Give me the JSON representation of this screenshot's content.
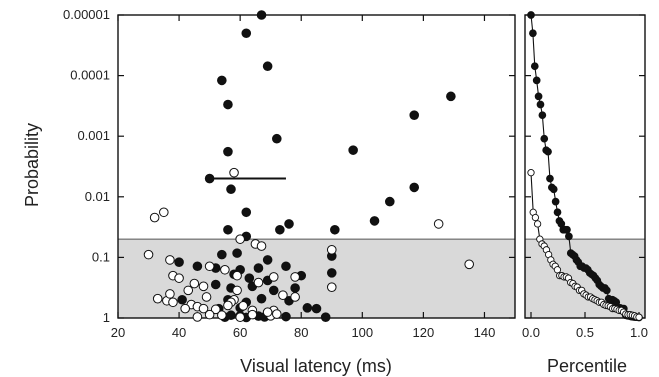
{
  "chart_data": [
    {
      "type": "scatter",
      "title": "",
      "xlabel": "Visual latency (ms)",
      "ylabel": "Probability",
      "xlim": [
        20,
        150
      ],
      "ylim": [
        1,
        1e-05
      ],
      "yscale": "log-reversed",
      "xticks": [
        "20",
        "40",
        "60",
        "80",
        "100",
        "120",
        "140"
      ],
      "yticks": [
        "0.00001",
        "0.0001",
        "0.001",
        "0.01",
        "0.1",
        "1"
      ],
      "shaded_region": {
        "p_from": 0.05,
        "p_to": 1,
        "color": "#d9d9d9"
      },
      "horizontal_bar": {
        "x": [
          50,
          75
        ],
        "p": 0.005
      },
      "series": [
        {
          "marker": "filled",
          "color": "#111111",
          "points": [
            [
              67,
              1e-05
            ],
            [
              62,
              2e-05
            ],
            [
              69,
              7e-05
            ],
            [
              54,
              0.00012
            ],
            [
              56,
              0.0003
            ],
            [
              129,
              0.00022
            ],
            [
              117,
              0.00045
            ],
            [
              72,
              0.0011
            ],
            [
              56,
              0.0018
            ],
            [
              97,
              0.0017
            ],
            [
              50,
              0.005
            ],
            [
              117,
              0.007
            ],
            [
              57,
              0.0075
            ],
            [
              109,
              0.012
            ],
            [
              62,
              0.018
            ],
            [
              76,
              0.028
            ],
            [
              104,
              0.025
            ],
            [
              56,
              0.035
            ],
            [
              73,
              0.035
            ],
            [
              62,
              0.045
            ],
            [
              91,
              0.035
            ],
            [
              54,
              0.09
            ],
            [
              59,
              0.085
            ],
            [
              69,
              0.11
            ],
            [
              90,
              0.095
            ],
            [
              40,
              0.12
            ],
            [
              46,
              0.14
            ],
            [
              52,
              0.15
            ],
            [
              60,
              0.16
            ],
            [
              66,
              0.15
            ],
            [
              75,
              0.14
            ],
            [
              58,
              0.19
            ],
            [
              63,
              0.22
            ],
            [
              69,
              0.24
            ],
            [
              80,
              0.2
            ],
            [
              90,
              0.18
            ],
            [
              52,
              0.28
            ],
            [
              57,
              0.32
            ],
            [
              64,
              0.3
            ],
            [
              71,
              0.35
            ],
            [
              78,
              0.32
            ],
            [
              41,
              0.5
            ],
            [
              56,
              0.5
            ],
            [
              62,
              0.55
            ],
            [
              67,
              0.48
            ],
            [
              76,
              0.52
            ],
            [
              53,
              0.7
            ],
            [
              60,
              0.68
            ],
            [
              82,
              0.68
            ],
            [
              85,
              0.7
            ],
            [
              57,
              0.9
            ],
            [
              60,
              0.92
            ],
            [
              66,
              0.93
            ],
            [
              75,
              0.95
            ],
            [
              55,
              0.97
            ],
            [
              62,
              0.98
            ],
            [
              68,
              0.96
            ],
            [
              88,
              0.97
            ]
          ]
        },
        {
          "marker": "open",
          "color": "#111111",
          "points": [
            [
              58,
              0.004
            ],
            [
              32,
              0.022
            ],
            [
              35,
              0.018
            ],
            [
              125,
              0.028
            ],
            [
              60,
              0.05
            ],
            [
              65,
              0.06
            ],
            [
              67,
              0.065
            ],
            [
              90,
              0.075
            ],
            [
              30,
              0.09
            ],
            [
              37,
              0.11
            ],
            [
              50,
              0.14
            ],
            [
              55,
              0.16
            ],
            [
              59,
              0.2
            ],
            [
              71,
              0.21
            ],
            [
              135,
              0.13
            ],
            [
              38,
              0.2
            ],
            [
              45,
              0.27
            ],
            [
              48,
              0.3
            ],
            [
              78,
              0.21
            ],
            [
              66,
              0.26
            ],
            [
              59,
              0.35
            ],
            [
              90,
              0.31
            ],
            [
              33,
              0.48
            ],
            [
              36,
              0.52
            ],
            [
              38,
              0.55
            ],
            [
              44,
              0.6
            ],
            [
              46,
              0.65
            ],
            [
              48,
              0.7
            ],
            [
              52,
              0.72
            ],
            [
              58,
              0.5
            ],
            [
              61,
              0.63
            ],
            [
              64,
              0.75
            ],
            [
              71,
              0.75
            ],
            [
              37,
              0.4
            ],
            [
              43,
              0.35
            ],
            [
              74,
              0.42
            ],
            [
              78,
              0.45
            ],
            [
              50,
              0.88
            ],
            [
              54,
              0.9
            ],
            [
              57,
              0.55
            ],
            [
              64,
              0.88
            ],
            [
              70,
              0.92
            ],
            [
              72,
              0.86
            ],
            [
              46,
              0.96
            ],
            [
              60,
              0.97
            ],
            [
              42,
              0.7
            ],
            [
              56,
              0.62
            ],
            [
              69,
              0.8
            ],
            [
              40,
              0.22
            ],
            [
              49,
              0.45
            ]
          ]
        }
      ]
    },
    {
      "type": "line",
      "title": "",
      "xlabel": "Percentile",
      "ylabel": "",
      "xlim": [
        0,
        1
      ],
      "ylim": [
        1,
        1e-05
      ],
      "yscale": "log-reversed",
      "xticks": [
        "0.0",
        "0.5",
        "1.0"
      ],
      "shaded_region": {
        "p_from": 0.05,
        "p_to": 1,
        "color": "#d9d9d9"
      },
      "series": [
        {
          "marker": "filled",
          "color": "#111111",
          "n": 58
        },
        {
          "marker": "open",
          "color": "#111111",
          "n": 50
        }
      ]
    }
  ]
}
